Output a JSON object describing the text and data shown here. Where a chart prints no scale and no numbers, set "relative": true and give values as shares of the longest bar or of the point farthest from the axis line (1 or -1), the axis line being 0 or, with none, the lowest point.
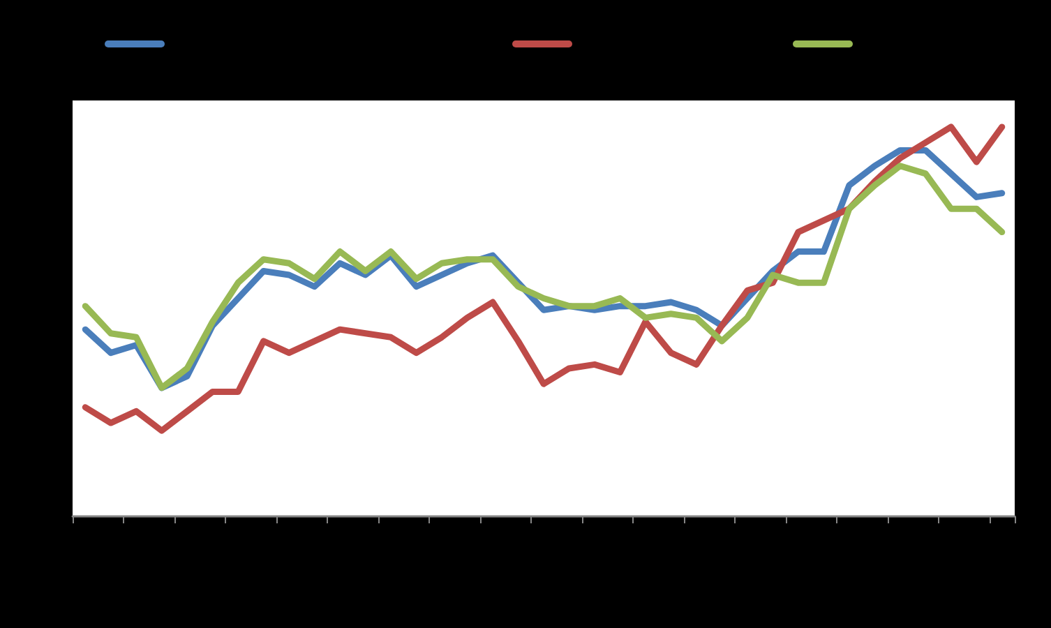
{
  "chart_data": {
    "type": "line",
    "relative": true,
    "grid": false,
    "marker": "none",
    "line_style": "solid",
    "categories": [
      null,
      null,
      null,
      null,
      null,
      null,
      null,
      null,
      null,
      null,
      null,
      null,
      null,
      null,
      null,
      null,
      null,
      null,
      null,
      null,
      null,
      null,
      null,
      null,
      null,
      null,
      null,
      null,
      null,
      null,
      null,
      null,
      null,
      null,
      null,
      null,
      null
    ],
    "series": [
      {
        "color": "#4a7ebb",
        "values": [
          0.48,
          0.42,
          0.44,
          0.33,
          0.36,
          0.49,
          0.56,
          0.63,
          0.62,
          0.59,
          0.65,
          0.62,
          0.67,
          0.59,
          0.62,
          0.65,
          0.67,
          0.6,
          0.53,
          0.54,
          0.53,
          0.54,
          0.54,
          0.55,
          0.53,
          0.49,
          0.56,
          0.63,
          0.68,
          0.68,
          0.85,
          0.9,
          0.94,
          0.94,
          0.88,
          0.82,
          0.83
        ]
      },
      {
        "color": "#be4b48",
        "values": [
          0.28,
          0.24,
          0.27,
          0.22,
          0.27,
          0.32,
          0.32,
          0.45,
          0.42,
          0.45,
          0.48,
          0.47,
          0.46,
          0.42,
          0.46,
          0.51,
          0.55,
          0.45,
          0.34,
          0.38,
          0.39,
          0.37,
          0.5,
          0.42,
          0.39,
          0.49,
          0.58,
          0.6,
          0.73,
          0.76,
          0.79,
          0.86,
          0.92,
          0.96,
          1.0,
          0.91,
          1.0
        ]
      },
      {
        "color": "#98b954",
        "values": [
          0.54,
          0.47,
          0.46,
          0.33,
          0.38,
          0.5,
          0.6,
          0.66,
          0.65,
          0.61,
          0.68,
          0.63,
          0.68,
          0.61,
          0.65,
          0.66,
          0.66,
          0.59,
          0.56,
          0.54,
          0.54,
          0.56,
          0.51,
          0.52,
          0.51,
          0.45,
          0.51,
          0.62,
          0.6,
          0.6,
          0.79,
          0.85,
          0.9,
          0.88,
          0.79,
          0.79,
          0.73
        ]
      }
    ]
  }
}
